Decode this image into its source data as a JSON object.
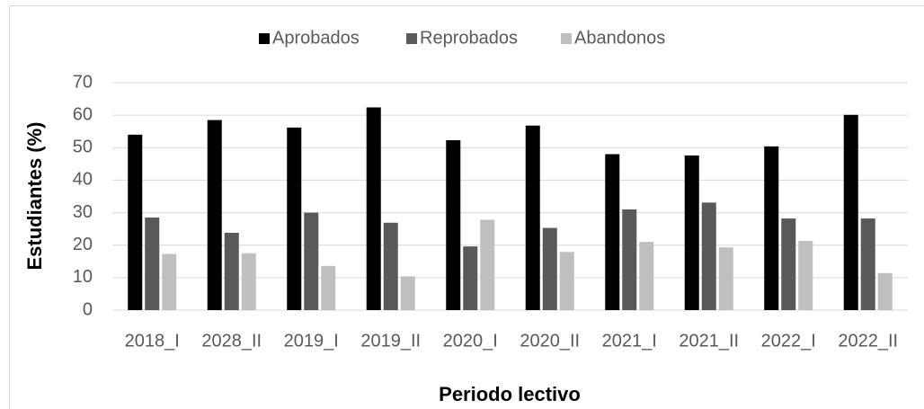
{
  "chart_data": {
    "type": "bar",
    "x_label": "Periodo lectivo",
    "y_label": "Estudiantes (%)",
    "categories": [
      "2018_I",
      "2028_II",
      "2019_I",
      "2019_II",
      "2020_I",
      "2020_II",
      "2021_I",
      "2021_II",
      "2022_I",
      "2022_II"
    ],
    "series": [
      {
        "name": "Aprobados",
        "color": "#000000",
        "values": [
          54,
          58.5,
          56.2,
          62.4,
          52.3,
          56.8,
          48,
          47.6,
          50.4,
          60.1
        ]
      },
      {
        "name": "Reprobados",
        "color": "#595959",
        "values": [
          28.5,
          23.8,
          30,
          26.9,
          19.6,
          25.3,
          31,
          33.1,
          28.2,
          28.2
        ]
      },
      {
        "name": "Abandonos",
        "color": "#bfbfbf",
        "values": [
          17.3,
          17.5,
          13.6,
          10.4,
          27.8,
          17.9,
          21,
          19.3,
          21.3,
          11.4
        ]
      }
    ],
    "ylim": [
      0,
      70
    ],
    "yticks": [
      0,
      10,
      20,
      30,
      40,
      50,
      60,
      70
    ],
    "grid": true,
    "legend": "top"
  }
}
